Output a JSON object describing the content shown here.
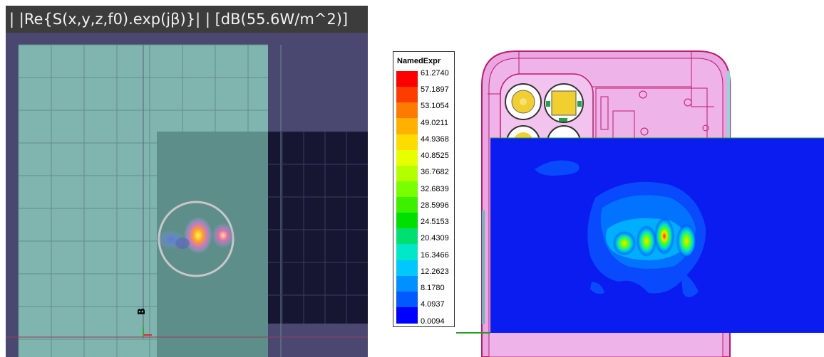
{
  "left_panel": {
    "title": "| |Re{S(x,y,z,f0).exp(jβ)}| | [dB(55.6W/m^2)]",
    "axis_label": "B"
  },
  "legend": {
    "title": "NamedExpr",
    "ticks": [
      "61.2740",
      "57.1897",
      "53.1054",
      "49.0211",
      "44.9368",
      "40.8525",
      "36.7682",
      "32.6839",
      "28.5996",
      "24.5153",
      "20.4309",
      "16.3466",
      "12.2623",
      "8.1780",
      "4.0937",
      "0.0094"
    ],
    "colors": [
      "#ff0000",
      "#ff3c00",
      "#ff7a00",
      "#ffb000",
      "#ffdc00",
      "#e8ff00",
      "#b4ff00",
      "#78ff00",
      "#3cf000",
      "#00e000",
      "#00e070",
      "#00e8c8",
      "#00c8ff",
      "#0090ff",
      "#005aff",
      "#0000ff"
    ]
  },
  "colors": {
    "left_background": "#4a4870",
    "board": "#7fb5ae",
    "dark_region": "#161632",
    "phone_fill": "#e9a6e3",
    "phone_outline": "#c2186b",
    "field_background": "#0a1cf0"
  }
}
